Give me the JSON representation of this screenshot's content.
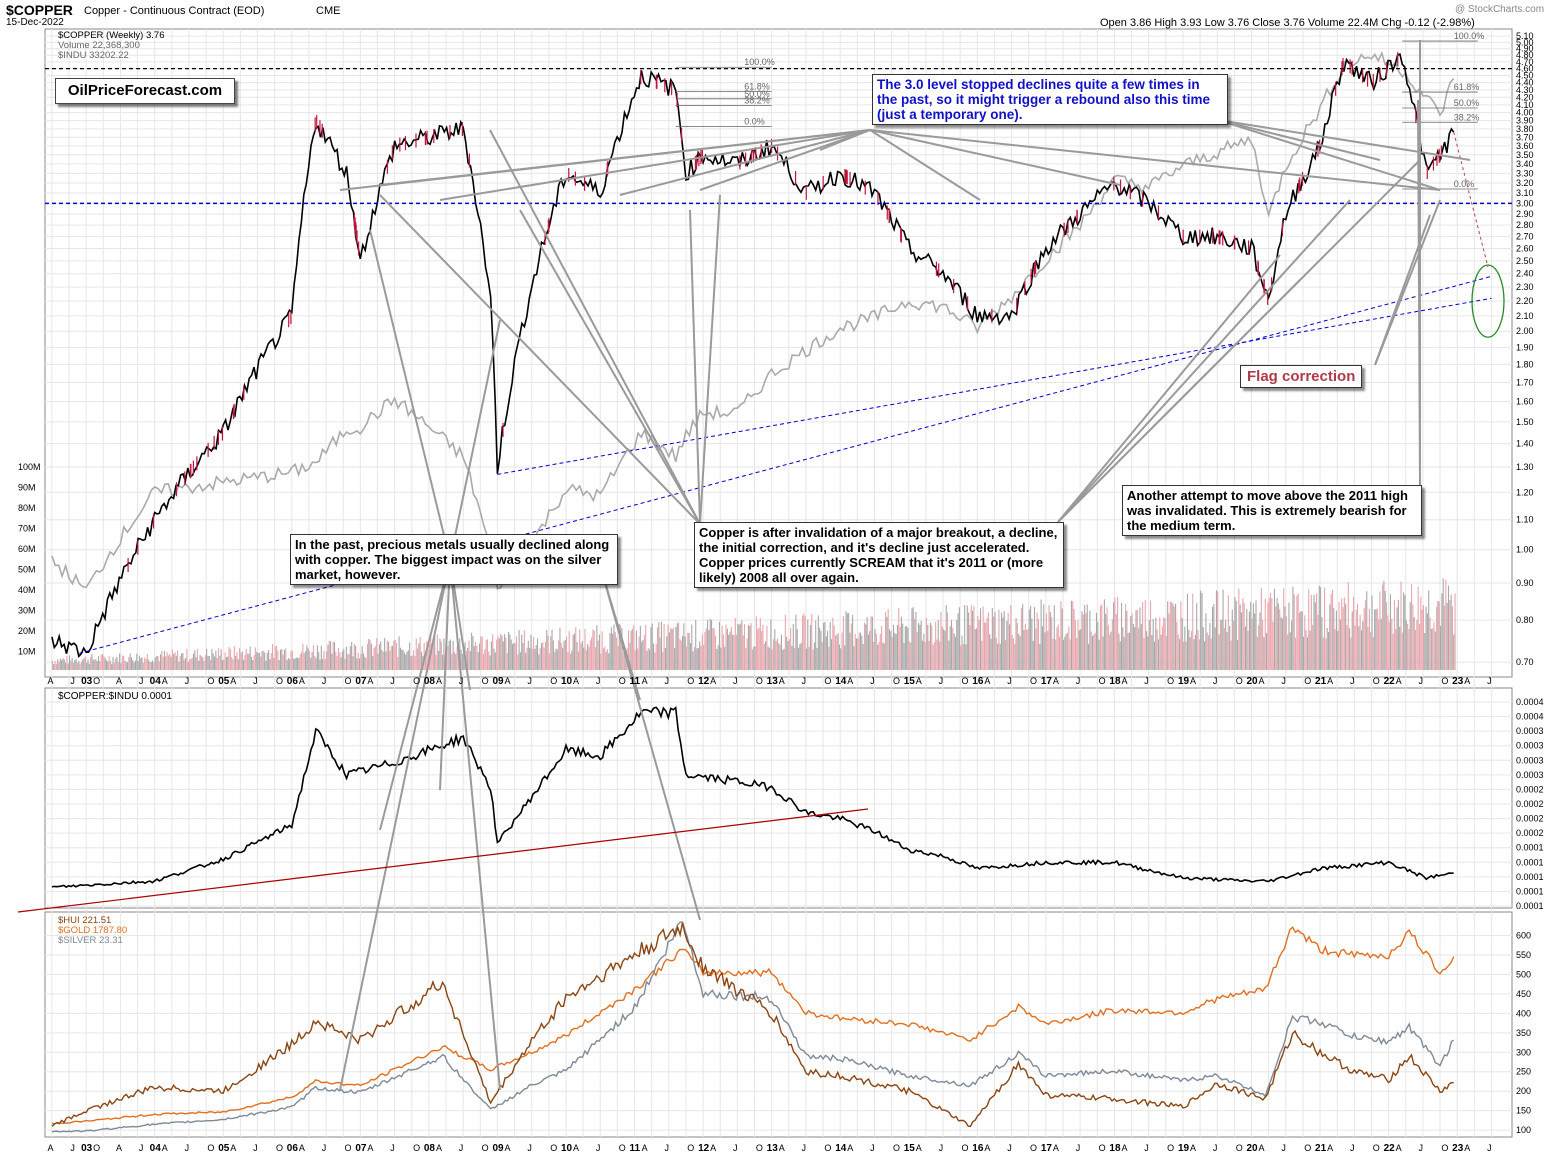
{
  "header": {
    "symbol": "$COPPER",
    "name": "Copper - Continuous Contract (EOD)",
    "exchange": "CME",
    "date": "15-Dec-2022",
    "ohlc": "Open 3.86  High 3.93  Low 3.76  Close 3.76  Volume 22.4M  Chg -0.12 (-2.98%)",
    "watermark": "@ StockCharts.com"
  },
  "legend_top": [
    {
      "label": "$COPPER (Weekly) 3.76",
      "color": "#000000"
    },
    {
      "label": "Volume 22,368,300",
      "color": "#999999"
    },
    {
      "label": "$INDU 33202.22",
      "color": "#999999"
    }
  ],
  "logo": "OilPriceForecast.com",
  "annotations": {
    "level_30": "The 3.0 level stopped declines quite a few times in the past, so it might trigger a rebound also this time (just a temporary one).",
    "flag": "Flag correction",
    "attempt_2011": "Another attempt to move above the 2011 high was invalidated. This is extremely bearish for the medium term.",
    "breakout": "Copper is after invalidation of a major breakout, a decline, the initial correction, and it's decline just accelerated. Copper prices currently SCREAM that it's 2011 or (more likely) 2008 all over again.",
    "metals": "In the past, precious metals usually declined along with copper. The biggest impact was on the silver market, however."
  },
  "fib_labels": [
    "100.0%",
    "61.8%",
    "50.0%",
    "38.2%",
    "0.0%"
  ],
  "fib_labels_right": [
    "100.0%",
    "61.8%",
    "50.0%",
    "38.2%",
    "0.0%"
  ],
  "panel2_label": "$COPPER:$INDU 0.0001",
  "panel3_legend": [
    {
      "label": "$HUI 221.51",
      "color": "#8B4513"
    },
    {
      "label": "$GOLD 1787.80",
      "color": "#E07020"
    },
    {
      "label": "$SILVER 23.31",
      "color": "#7F8A98"
    }
  ],
  "colors": {
    "copper": "#000000",
    "down_bar": "#c0143c",
    "indu": "#aaaaaa",
    "level_line": "#0000cc",
    "ratio_trend": "#aa0000",
    "hui": "#8B4513",
    "gold": "#E07020",
    "silver": "#7F8A98"
  },
  "chart_data": [
    {
      "type": "line",
      "x": [
        2002.5,
        2003.0,
        2004.0,
        2005.0,
        2006.0,
        2006.35,
        2006.8,
        2007.0,
        2007.5,
        2008.5,
        2008.9,
        2009.0,
        2009.5,
        2010.0,
        2010.5,
        2011.1,
        2011.6,
        2011.75,
        2012.0,
        2012.5,
        2013.0,
        2013.5,
        2014.0,
        2014.5,
        2015.0,
        2015.5,
        2016.0,
        2016.5,
        2017.0,
        2017.5,
        2018.0,
        2018.5,
        2019.0,
        2019.5,
        2020.0,
        2020.25,
        2020.5,
        2021.0,
        2021.35,
        2021.75,
        2022.2,
        2022.55,
        2022.75,
        2022.95
      ],
      "series": [
        {
          "name": "$COPPER (Weekly) 3.76",
          "values": [
            0.75,
            0.72,
            1.1,
            1.45,
            2.1,
            3.9,
            3.3,
            2.5,
            3.6,
            3.8,
            2.2,
            1.3,
            2.3,
            3.3,
            3.1,
            4.5,
            4.3,
            3.3,
            3.5,
            3.4,
            3.6,
            3.1,
            3.3,
            3.1,
            2.6,
            2.4,
            2.1,
            2.1,
            2.6,
            2.9,
            3.2,
            3.0,
            2.7,
            2.7,
            2.6,
            2.2,
            2.9,
            3.6,
            4.7,
            4.4,
            4.8,
            3.3,
            3.5,
            3.76
          ]
        },
        {
          "name": "$INDU 33202.22",
          "values": [
            8600,
            7900,
            10400,
            10700,
            11000,
            11300,
            12400,
            12500,
            13500,
            11500,
            8800,
            8000,
            9000,
            10500,
            10300,
            12300,
            11500,
            12200,
            13000,
            13000,
            14500,
            15500,
            16500,
            17000,
            17800,
            17500,
            16500,
            18000,
            20000,
            22000,
            25000,
            24500,
            26000,
            27000,
            28000,
            22500,
            26000,
            30500,
            34500,
            35500,
            34000,
            31500,
            30000,
            33200
          ]
        }
      ],
      "y_ticks": [
        "5.10",
        "5.00",
        "4.90",
        "4.80",
        "4.70",
        "4.60",
        "4.50",
        "4.40",
        "4.30",
        "4.20",
        "4.10",
        "4.00",
        "3.90",
        "3.80",
        "3.70",
        "3.60",
        "3.50",
        "3.40",
        "3.30",
        "3.20",
        "3.10",
        "3.00",
        "2.90",
        "2.80",
        "2.70",
        "2.60",
        "2.50",
        "2.40",
        "2.30",
        "2.20",
        "2.10",
        "2.00",
        "1.90",
        "1.80",
        "1.70",
        "1.60",
        "1.50",
        "1.40",
        "1.30",
        "1.20",
        "1.10",
        "1.00",
        "0.90",
        "0.80",
        "0.70"
      ],
      "volume_ticks": [
        "100M",
        "90M",
        "80M",
        "70M",
        "60M",
        "50M",
        "40M",
        "30M",
        "20M",
        "10M"
      ],
      "scale": "log",
      "grid": true,
      "ylim": [
        0.67,
        5.15
      ]
    },
    {
      "type": "line",
      "x": [
        2002.5,
        2004.0,
        2005.0,
        2006.0,
        2006.35,
        2006.8,
        2007.5,
        2008.5,
        2008.9,
        2009.0,
        2010.0,
        2010.5,
        2011.1,
        2011.6,
        2011.75,
        2012.5,
        2013.0,
        2013.5,
        2014.0,
        2014.5,
        2015.0,
        2015.5,
        2016.0,
        2017.0,
        2018.0,
        2019.0,
        2020.0,
        2020.25,
        2021.0,
        2021.5,
        2022.0,
        2022.55,
        2022.95
      ],
      "series": [
        {
          "name": "$COPPER:$INDU 0.0001",
          "values": [
            9e-05,
            0.0001,
            0.000135,
            0.00019,
            0.00034,
            0.00027,
            0.00029,
            0.00033,
            0.00025,
            0.00016,
            0.00031,
            0.0003,
            0.00037,
            0.00037,
            0.00027,
            0.00026,
            0.00025,
            0.00021,
            0.0002,
            0.00018,
            0.00015,
            0.00014,
            0.00012,
            0.00013,
            0.00013,
            0.000105,
            0.0001,
            0.0001,
            0.00012,
            0.000125,
            0.00013,
            0.000105,
            0.000113
          ]
        }
      ],
      "y_ticks": [
        "0.0004",
        "0.0004",
        "0.0003",
        "0.0003",
        "0.0003",
        "0.0003",
        "0.0002",
        "0.0002",
        "0.0002",
        "0.0002",
        "0.0001",
        "0.0001",
        "0.0001",
        "0.0001",
        "0.0001"
      ],
      "grid": true
    },
    {
      "type": "line",
      "x": [
        2002.5,
        2003.0,
        2004.0,
        2005.0,
        2006.0,
        2006.35,
        2007.0,
        2008.2,
        2008.9,
        2009.5,
        2010.0,
        2011.0,
        2011.7,
        2012.0,
        2013.0,
        2013.5,
        2014.0,
        2015.0,
        2015.9,
        2016.6,
        2017.0,
        2018.0,
        2019.0,
        2019.5,
        2020.2,
        2020.6,
        2021.0,
        2021.5,
        2022.0,
        2022.3,
        2022.75,
        2022.95
      ],
      "series": [
        {
          "name": "$HUI 221.51",
          "values": [
            110,
            150,
            210,
            200,
            320,
            380,
            330,
            480,
            170,
            330,
            440,
            550,
            620,
            520,
            400,
            250,
            240,
            200,
            110,
            270,
            190,
            180,
            160,
            220,
            180,
            350,
            300,
            250,
            230,
            290,
            200,
            221.51
          ]
        },
        {
          "name": "$GOLD 1787.80",
          "values": [
            330,
            350,
            410,
            430,
            560,
            700,
            660,
            1000,
            800,
            950,
            1100,
            1500,
            1850,
            1650,
            1650,
            1300,
            1250,
            1200,
            1060,
            1350,
            1200,
            1320,
            1300,
            1420,
            1500,
            2050,
            1850,
            1800,
            1800,
            2000,
            1650,
            1787.8
          ]
        },
        {
          "name": "$SILVER 23.31",
          "values": [
            4.5,
            4.6,
            6.0,
            7.0,
            9.5,
            13.5,
            12.5,
            20.0,
            9.0,
            14.0,
            17.0,
            30.0,
            48.0,
            33.0,
            32.0,
            20.0,
            19.5,
            16.0,
            14.0,
            20.5,
            16.0,
            17.0,
            15.0,
            16.0,
            12.0,
            28.0,
            27.0,
            24.0,
            23.0,
            26.0,
            18.0,
            23.31
          ]
        }
      ],
      "y_ticks": [
        "600",
        "550",
        "500",
        "450",
        "400",
        "350",
        "300",
        "250",
        "200",
        "150",
        "100"
      ],
      "grid": true
    }
  ],
  "x_axis": {
    "years": [
      "03",
      "04",
      "05",
      "06",
      "07",
      "08",
      "09",
      "10",
      "11",
      "12",
      "13",
      "14",
      "15",
      "16",
      "17",
      "18",
      "19",
      "20",
      "21",
      "22",
      "23"
    ],
    "months": [
      "A",
      "J",
      "O",
      "A",
      "J",
      "A",
      "J",
      "O",
      "A",
      "J",
      "O",
      "A",
      "J",
      "O",
      "A",
      "J",
      "O",
      "A",
      "J",
      "O",
      "A",
      "J",
      "O",
      "A",
      "J",
      "O",
      "A",
      "J",
      "O",
      "A",
      "J",
      "O",
      "A",
      "J",
      "O",
      "A",
      "J",
      "O",
      "A",
      "J",
      "O",
      "A",
      "J",
      "O",
      "A",
      "J",
      "O",
      "A",
      "J",
      "O",
      "A",
      "J",
      "O",
      "A",
      "J",
      "O",
      "A",
      "J",
      "O",
      "A",
      "J",
      "O",
      "A",
      "J"
    ]
  }
}
